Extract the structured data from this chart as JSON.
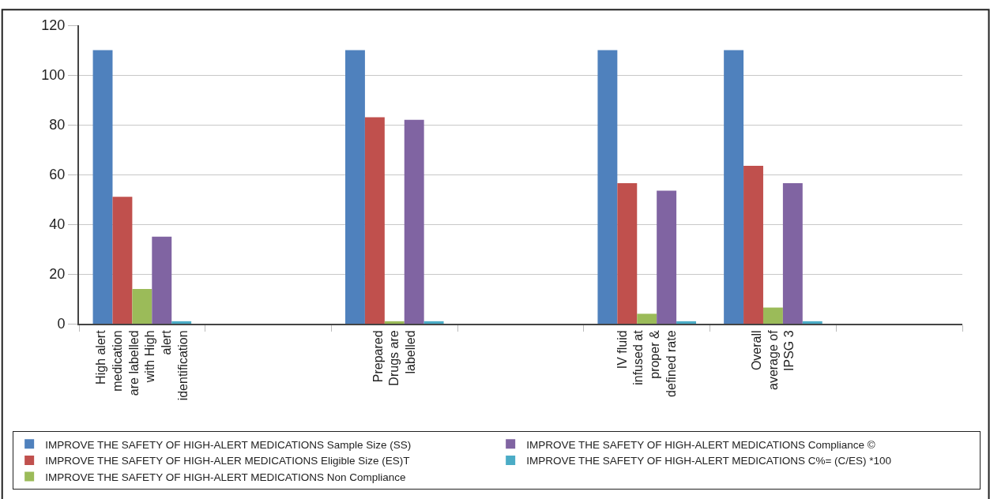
{
  "chart_data": {
    "type": "bar",
    "categories": [
      "High alert\nmedication\nare labelled\nwith High\nalert\nidentification",
      null,
      "Prepared\nDrugs are\nlabelled",
      null,
      "IV fluid\ninfused at\nproper &\ndefined rate",
      "Overall\naverage of\nIPSG 3",
      null
    ],
    "series": [
      {
        "name": "IMPROVE THE SAFETY OF HIGH-ALERT MEDICATIONS Sample Size (SS)",
        "color": "#4f81bd",
        "values": [
          110,
          null,
          110,
          null,
          110,
          110,
          null
        ]
      },
      {
        "name": "IMPROVE THE SAFETY OF HIGH-ALER MEDICATIONS Eligible Size (ES)T",
        "color": "#c0504d",
        "values": [
          51,
          null,
          83,
          null,
          56.5,
          63.5,
          null
        ]
      },
      {
        "name": "IMPROVE THE SAFETY OF HIGH-ALERT MEDICATIONS Non Compliance",
        "color": "#9bbb59",
        "values": [
          14,
          null,
          1,
          null,
          4,
          6.5,
          null
        ]
      },
      {
        "name": "IMPROVE THE SAFETY OF HIGH-ALERT MEDICATIONS Compliance ©",
        "color": "#8064a2",
        "values": [
          35,
          null,
          82,
          null,
          53.5,
          56.5,
          null
        ]
      },
      {
        "name": "IMPROVE THE SAFETY OF HIGH-ALERT MEDICATIONS C%= (C/ES) *100",
        "color": "#4bacc6",
        "values": [
          1,
          null,
          1,
          null,
          1,
          1,
          null
        ]
      }
    ],
    "ylim": [
      0,
      120
    ],
    "yticks": [
      0,
      20,
      40,
      60,
      80,
      100,
      120
    ],
    "grid": "y",
    "legend": "bottom"
  }
}
